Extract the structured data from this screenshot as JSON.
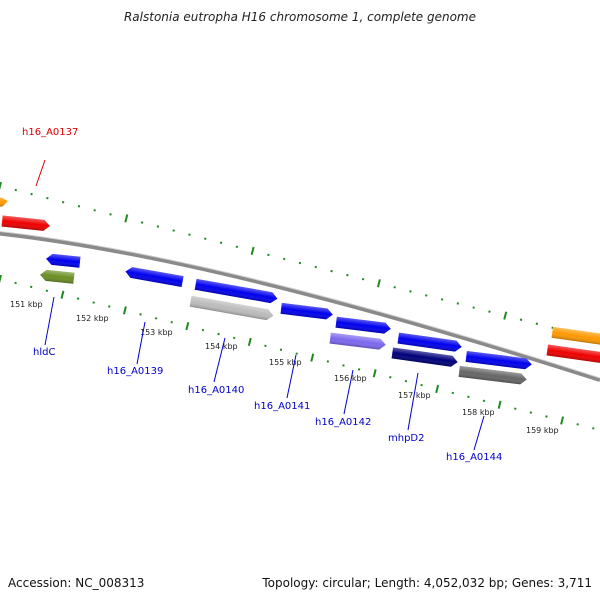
{
  "title": "Ralstonia eutropha H16 chromosome 1, complete genome",
  "footer": {
    "accession": "Accession: NC_008313",
    "summary": "Topology: circular; Length: 4,052,032 bp; Genes: 3,711"
  },
  "colors": {
    "backbone": "#8a8a8a",
    "ticks": "#1f8a1f",
    "gene_label": "#0000cc",
    "highlight_label": "#dd0000"
  },
  "ticks": [
    {
      "label": "151 kbp"
    },
    {
      "label": "152 kbp"
    },
    {
      "label": "153 kbp"
    },
    {
      "label": "154 kbp"
    },
    {
      "label": "155 kbp"
    },
    {
      "label": "156 kbp"
    },
    {
      "label": "157 kbp"
    },
    {
      "label": "158 kbp"
    },
    {
      "label": "159 kbp"
    }
  ],
  "gene_labels": [
    {
      "text": "h16_A0137",
      "highlight": true
    },
    {
      "text": "hldC",
      "highlight": false
    },
    {
      "text": "h16_A0139",
      "highlight": false
    },
    {
      "text": "h16_A0140",
      "highlight": false
    },
    {
      "text": "h16_A0141",
      "highlight": false
    },
    {
      "text": "h16_A0142",
      "highlight": false
    },
    {
      "text": "mhpD2",
      "highlight": false
    },
    {
      "text": "h16_A0144",
      "highlight": false
    }
  ],
  "genes": [
    {
      "color": "#ff9900",
      "strand": "forward",
      "track": "outer"
    },
    {
      "color": "#ee0000",
      "strand": "forward",
      "track": "outer"
    },
    {
      "color": "#0000ee",
      "strand": "reverse",
      "track": "inner"
    },
    {
      "color": "#6b8e23",
      "strand": "reverse",
      "track": "inner2"
    },
    {
      "color": "#0000ee",
      "strand": "reverse",
      "track": "inner"
    },
    {
      "color": "#0000ee",
      "strand": "forward",
      "track": "inner"
    },
    {
      "color": "#bbbbbb",
      "strand": "forward",
      "track": "inner2"
    },
    {
      "color": "#0000ee",
      "strand": "forward",
      "track": "inner"
    },
    {
      "color": "#0000ee",
      "strand": "forward",
      "track": "inner"
    },
    {
      "color": "#7b68ee",
      "strand": "forward",
      "track": "inner2"
    },
    {
      "color": "#0000ee",
      "strand": "forward",
      "track": "inner"
    },
    {
      "color": "#00007a",
      "strand": "forward",
      "track": "inner2"
    },
    {
      "color": "#0000ee",
      "strand": "forward",
      "track": "inner"
    },
    {
      "color": "#666666",
      "strand": "forward",
      "track": "inner2"
    },
    {
      "color": "#ff9900",
      "strand": "forward",
      "track": "outer"
    },
    {
      "color": "#ee0000",
      "strand": "forward",
      "track": "outer"
    }
  ]
}
